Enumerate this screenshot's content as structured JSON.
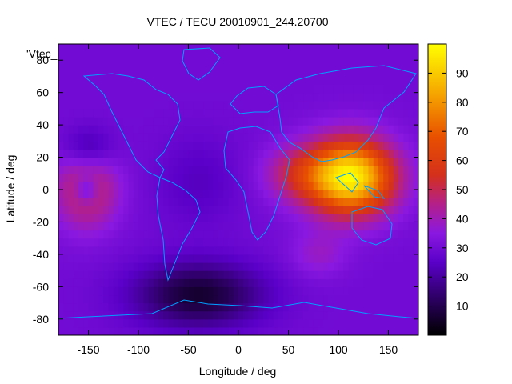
{
  "chart_data": {
    "type": "heatmap",
    "title": "VTEC / TECU 20010901_244.20700",
    "xlabel": "Longitude / deg",
    "ylabel": "Latitude / deg",
    "legend_label": "'Vtec_",
    "xlim": [
      -180,
      180
    ],
    "ylim": [
      -90,
      90
    ],
    "x_ticks": [
      -150,
      -100,
      -50,
      0,
      50,
      100,
      150
    ],
    "y_ticks": [
      -80,
      -60,
      -40,
      -20,
      0,
      20,
      40,
      60,
      80
    ],
    "colorbar": {
      "range": [
        0,
        100
      ],
      "ticks": [
        10,
        20,
        30,
        40,
        50,
        60,
        70,
        80,
        90
      ],
      "palette": "black-purple-red-orange-yellow"
    },
    "overlay": "coastlines",
    "features": [
      {
        "description": "equatorial maximum over Indian Ocean / SE Asia",
        "lon": 110,
        "lat": 10,
        "value": 95
      },
      {
        "description": "secondary ring over central Pacific",
        "lon": -150,
        "lat": 0,
        "value": 50
      },
      {
        "description": "minimum over South Atlantic / Antarctica",
        "lon": -40,
        "lat": -65,
        "value": 8
      }
    ]
  }
}
